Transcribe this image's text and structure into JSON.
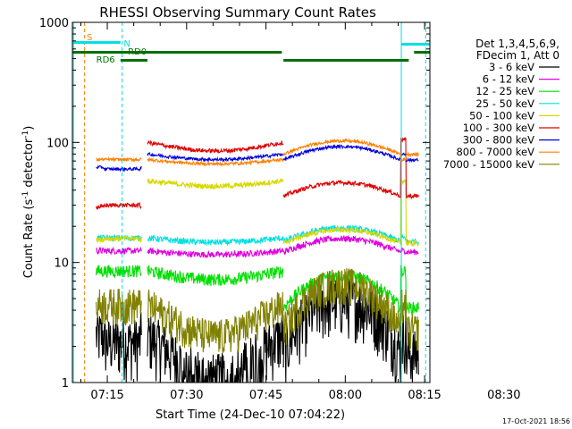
{
  "chart_data": {
    "type": "line",
    "title": "RHESSI Observing Summary Count Rates",
    "xlabel": "Start Time (24-Dec-10 07:04:22)",
    "ylabel_pre": "Count Rate (s",
    "ylabel_sup1": "-1",
    "ylabel_mid": " detector",
    "ylabel_sup2": "-1",
    "ylabel_post": ")",
    "yscale": "log",
    "ylim": [
      1,
      1000
    ],
    "xlim_min": [
      4.4,
      72
    ],
    "x_tick_min": [
      11,
      26,
      41,
      56,
      71,
      86
    ],
    "x_tick_labels": [
      "07:15",
      "07:30",
      "07:45",
      "08:00",
      "08:15",
      "08:30"
    ],
    "y_tick_values": [
      1,
      10,
      100,
      1000
    ],
    "y_tick_labels": [
      "1",
      "10",
      "100",
      "1000"
    ],
    "legend_header": [
      "Det 1,3,4,5,6,9,",
      "FDecim 1, Att 0"
    ],
    "timestamp": "17-Oct-2021 18:56",
    "segments": [
      [
        8.9,
        17.5
      ],
      [
        18.6,
        44.3
      ],
      [
        44.3,
        69.9
      ]
    ],
    "flags": [
      {
        "label": "S",
        "color": "#ff8000"
      },
      {
        "label": "N",
        "color": "#00e0e0"
      },
      {
        "label": "RD0",
        "color": "#007000"
      },
      {
        "label": "RD6",
        "color": "#007000"
      }
    ],
    "series": [
      {
        "name": "3 - 6 keV",
        "color": "#000000",
        "base": 2.5,
        "att": 2.5,
        "noise": 0.55,
        "dip": 0.45,
        "bump": 2.5
      },
      {
        "name": "6 - 12 keV",
        "color": "#e000e0",
        "base": 12.5,
        "att": 12.5,
        "noise": 0.06,
        "dip": 0.93,
        "bump": 1.15
      },
      {
        "name": "12 - 25 keV",
        "color": "#00e000",
        "base": 8.5,
        "att": 8.5,
        "noise": 0.12,
        "dip": 0.85,
        "bump": 0.75
      },
      {
        "name": "25 - 50 keV",
        "color": "#00e0e0",
        "base": 16,
        "att": 16,
        "noise": 0.06,
        "dip": 0.92,
        "bump": 1.1
      },
      {
        "name": "50 - 100 keV",
        "color": "#d8d800",
        "base": 48,
        "att": 15.5,
        "noise": 0.05,
        "dip": 0.9,
        "bump": 0.4
      },
      {
        "name": "100 - 300 keV",
        "color": "#e00000",
        "base": 100,
        "att": 29,
        "noise": 0.04,
        "dip": 0.85,
        "bump": 0.45
      },
      {
        "name": "300 - 800 keV",
        "color": "#0000e0",
        "base": 80,
        "att": 62,
        "noise": 0.03,
        "dip": 0.9,
        "bump": 1.05
      },
      {
        "name": "800 - 7000 keV",
        "color": "#ff8000",
        "base": 72,
        "att": 72,
        "noise": 0.03,
        "dip": 0.92,
        "bump": 1.3
      },
      {
        "name": "7000 - 15000 keV",
        "color": "#808000",
        "base": 4.5,
        "att": 4.5,
        "noise": 0.35,
        "dip": 0.55,
        "bump": 2.0
      }
    ]
  }
}
